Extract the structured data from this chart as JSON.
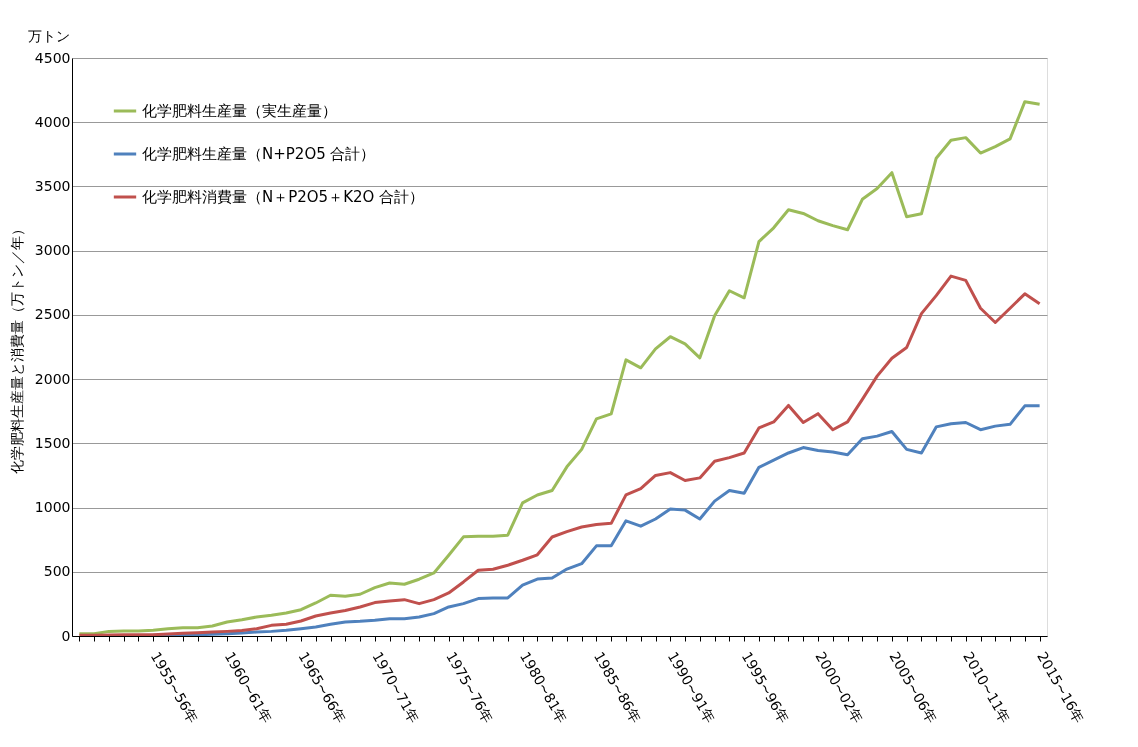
{
  "chart_data": {
    "type": "line",
    "ylabel": "化学肥料生産量と消費量（万トン／年）",
    "annotations": [
      "万トン"
    ],
    "categories": [
      null,
      null,
      null,
      null,
      null,
      "1955~56年",
      null,
      null,
      null,
      null,
      "1960~61年",
      null,
      null,
      null,
      null,
      "1965~66年",
      null,
      null,
      null,
      null,
      "1970~71年",
      null,
      null,
      null,
      null,
      "1975~76年",
      null,
      null,
      null,
      null,
      "1980~81年",
      null,
      null,
      null,
      null,
      "1985~86年",
      null,
      null,
      null,
      null,
      "1990~91年",
      null,
      null,
      null,
      null,
      "1995~96年",
      null,
      null,
      null,
      null,
      "2000~02年",
      null,
      null,
      null,
      null,
      "2005~06年",
      null,
      null,
      null,
      null,
      "2010~11年",
      null,
      null,
      null,
      null,
      "2015~16年"
    ],
    "series": [
      {
        "name": "化学肥料生産量（実生産量）",
        "color": "#9bbb59",
        "values": [
          18,
          18,
          36,
          39,
          39,
          44,
          57,
          65,
          65,
          78,
          109,
          127,
          148,
          161,
          179,
          205,
          257,
          317,
          309,
          325,
          377,
          413,
          403,
          442,
          491,
          629,
          772,
          777,
          777,
          785,
          1036,
          1098,
          1133,
          1317,
          1453,
          1690,
          1729,
          2150,
          2088,
          2236,
          2330,
          2275,
          2166,
          2493,
          2688,
          2633,
          3070,
          3178,
          3318,
          3290,
          3233,
          3195,
          3163,
          3400,
          3484,
          3607,
          3264,
          3287,
          3720,
          3860,
          3880,
          3760,
          3810,
          3870,
          4160,
          4140
        ]
      },
      {
        "name": "化学肥料生産量（N+P2O5 合計）",
        "color": "#4f81bd",
        "values": [
          null,
          null,
          null,
          null,
          null,
          5,
          6,
          8,
          10,
          13,
          18,
          23,
          31,
          36,
          44,
          57,
          70,
          91,
          109,
          114,
          122,
          135,
          135,
          148,
          174,
          226,
          252,
          291,
          296,
          296,
          396,
          443,
          451,
          521,
          563,
          702,
          702,
          897,
          855,
          911,
          989,
          980,
          911,
          1050,
          1133,
          1111,
          1313,
          1369,
          1425,
          1467,
          1444,
          1433,
          1411,
          1536,
          1556,
          1592,
          1453,
          1425,
          1628,
          1653,
          1662,
          1606,
          1634,
          1648,
          1792,
          1792
        ]
      },
      {
        "name": "化学肥料消費量（N＋P2O5＋K2O 合計）",
        "color": "#c0504d",
        "values": [
          5,
          5,
          8,
          10,
          10,
          10,
          16,
          21,
          26,
          31,
          36,
          42,
          57,
          83,
          91,
          117,
          156,
          179,
          198,
          226,
          260,
          273,
          283,
          252,
          283,
          335,
          421,
          512,
          520,
          551,
          590,
          632,
          771,
          813,
          849,
          868,
          877,
          1099,
          1147,
          1250,
          1272,
          1211,
          1231,
          1361,
          1389,
          1425,
          1620,
          1667,
          1795,
          1662,
          1731,
          1606,
          1667,
          1842,
          2023,
          2162,
          2246,
          2510,
          2650,
          2802,
          2769,
          2552,
          2441,
          2552,
          2664,
          2586
        ]
      }
    ],
    "ylim": [
      0,
      4500
    ],
    "yticks": [
      0,
      500,
      1000,
      1500,
      2000,
      2500,
      3000,
      3500,
      4000,
      4500
    ],
    "grid": "y",
    "legend": "top left",
    "marker": "none",
    "line_style": "solid"
  }
}
